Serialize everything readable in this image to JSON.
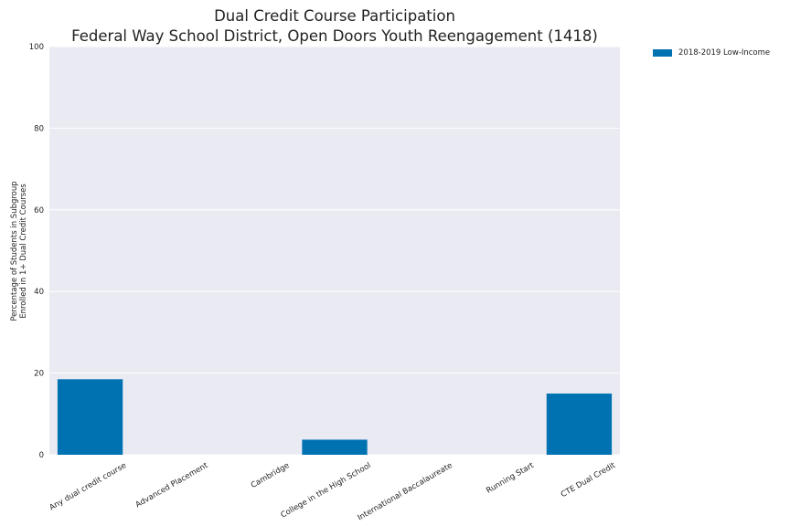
{
  "chart_data": {
    "type": "bar",
    "title": "Dual Credit Course Participation",
    "subtitle": "Federal Way School District, Open Doors Youth Reengagement (1418)",
    "ylabel": "Percentage of Students in Subgroup\nEnrolled in 1+ Dual Credit Courses",
    "ylabel_lines": [
      "Percentage of Students in Subgroup",
      "Enrolled in 1+ Dual Credit Courses"
    ],
    "xlabel": "",
    "categories": [
      "Any dual credit course",
      "Advanced Placement",
      "Cambridge",
      "College in the High School",
      "International Baccalaureate",
      "Running Start",
      "CTE Dual Credit"
    ],
    "series": [
      {
        "name": "2018-2019 Low-Income",
        "color": "#0072b2",
        "values": [
          18.5,
          0,
          0,
          3.7,
          0,
          0,
          15.0
        ]
      }
    ],
    "ylim": [
      0,
      100
    ],
    "yticks": [
      0,
      20,
      40,
      60,
      80,
      100
    ],
    "grid": true,
    "legend_position": "outside-top-right",
    "background": "#eaeaf2"
  }
}
